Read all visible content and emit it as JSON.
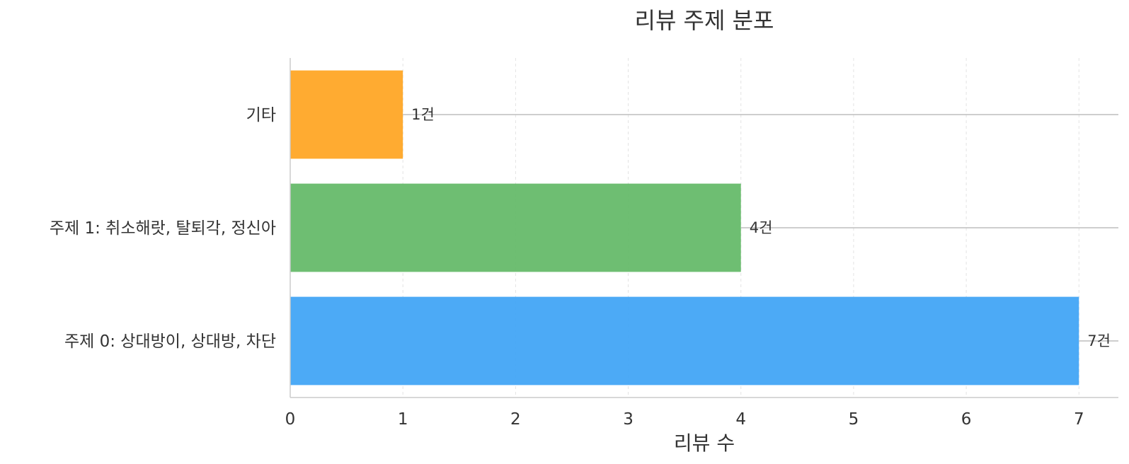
{
  "chart_data": {
    "type": "bar",
    "orientation": "horizontal",
    "title": "리뷰 주제 분포",
    "xlabel": "리뷰 수",
    "ylabel": "",
    "xlim": [
      0,
      7.35
    ],
    "xticks": [
      "0",
      "1",
      "2",
      "3",
      "4",
      "5",
      "6",
      "7"
    ],
    "categories": [
      "기타",
      "주제 1: 취소해랏, 탈퇴각, 정신아",
      "주제 0: 상대방이, 상대방, 차단"
    ],
    "values": [
      1,
      4,
      7
    ],
    "value_labels": [
      "1건",
      "4건",
      "7건"
    ],
    "colors": [
      "#FFA726",
      "#66BB6A",
      "#42A5F5"
    ],
    "grid": "x-dashed",
    "legend": "none"
  }
}
